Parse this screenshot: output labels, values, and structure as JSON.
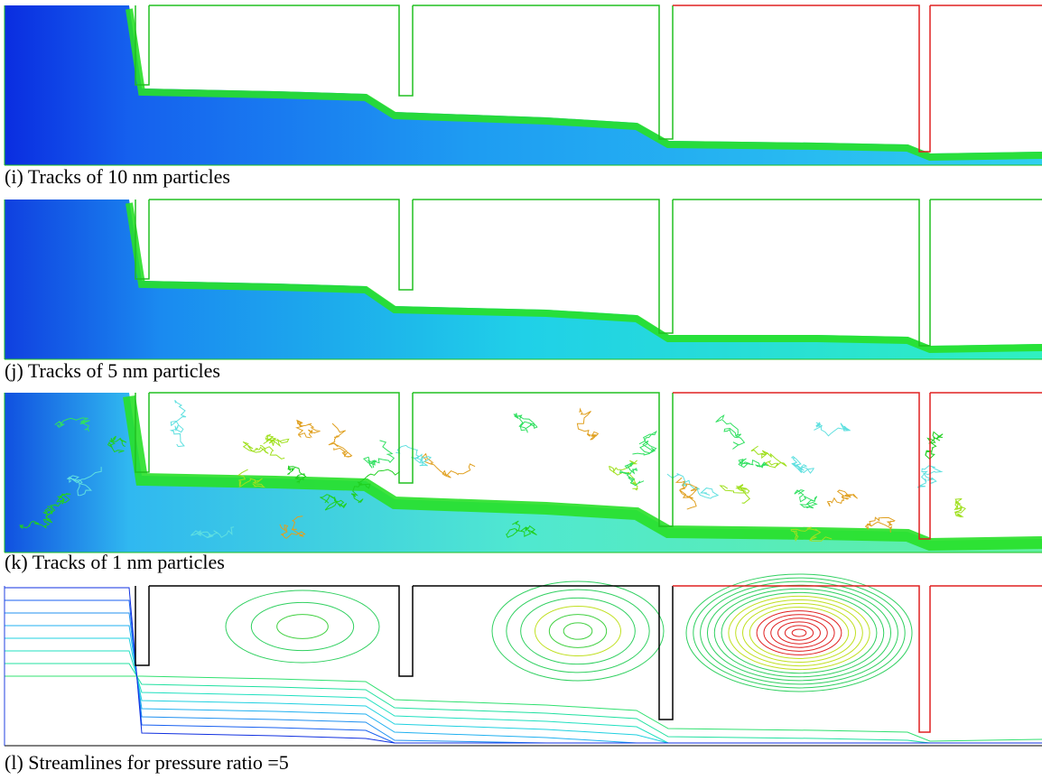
{
  "panels": [
    {
      "caption": "(i) Tracks of 10 nm particles"
    },
    {
      "caption": "(j) Tracks of 5 nm particles"
    },
    {
      "caption": "(k) Tracks of 1 nm particles"
    },
    {
      "caption": "(l) Streamlines for pressure ratio =5"
    }
  ]
}
